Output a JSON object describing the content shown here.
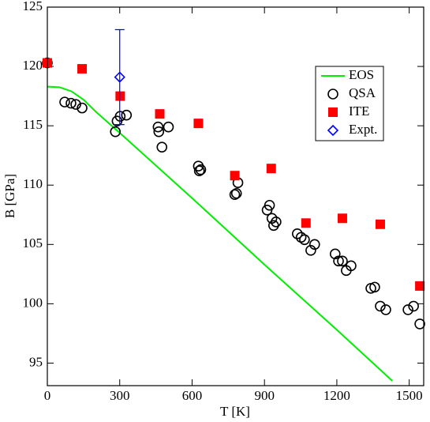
{
  "chart_data": {
    "type": "scatter",
    "xlabel": "T [K]",
    "ylabel": "B [GPa]",
    "xlim": [
      0,
      1560
    ],
    "ylim": [
      93.1,
      125
    ],
    "xticks": [
      0,
      300,
      600,
      900,
      1200,
      1500
    ],
    "yticks": [
      95,
      100,
      105,
      110,
      115,
      120,
      125
    ],
    "legend": "upper right",
    "series": [
      {
        "name": "EOS",
        "type": "line",
        "color": "#00ee00",
        "x": [
          0,
          50,
          100,
          150,
          200,
          300,
          600,
          900,
          1200,
          1430
        ],
        "values": [
          118.3,
          118.25,
          117.9,
          117.2,
          116.2,
          114.4,
          108.9,
          103.3,
          97.8,
          93.5
        ]
      },
      {
        "name": "QSA",
        "marker": "circle",
        "color": "#000000",
        "x": [
          0,
          72,
          98,
          118,
          144,
          282,
          289,
          302,
          328,
          459,
          462,
          475,
          502,
          626,
          630,
          636,
          777,
          784,
          790,
          911,
          921,
          931,
          938,
          948,
          1036,
          1052,
          1066,
          1092,
          1108,
          1193,
          1207,
          1223,
          1239,
          1259,
          1341,
          1357,
          1380,
          1403,
          1495,
          1518,
          1544
        ],
        "values": [
          120.3,
          117.0,
          116.9,
          116.8,
          116.5,
          114.5,
          115.4,
          115.8,
          115.9,
          114.9,
          114.5,
          113.2,
          114.9,
          111.6,
          111.2,
          111.3,
          109.2,
          109.3,
          110.2,
          107.9,
          108.3,
          107.2,
          106.6,
          106.9,
          105.9,
          105.6,
          105.4,
          104.5,
          105.0,
          104.2,
          103.6,
          103.6,
          102.8,
          103.2,
          101.3,
          101.4,
          99.8,
          99.5,
          99.5,
          99.8,
          98.3
        ]
      },
      {
        "name": "ITE",
        "marker": "square",
        "color": "#ff0000",
        "x": [
          0,
          144,
          302,
          466,
          626,
          777,
          928,
          1072,
          1223,
          1380,
          1544
        ],
        "values": [
          120.3,
          119.8,
          117.5,
          116.0,
          115.2,
          110.8,
          111.4,
          106.8,
          107.2,
          106.7,
          101.5
        ]
      },
      {
        "name": "Expt.",
        "marker": "diamond",
        "color": "#0000ff",
        "x": [
          300
        ],
        "values": [
          119.1
        ],
        "errors": [
          4
        ]
      }
    ]
  }
}
